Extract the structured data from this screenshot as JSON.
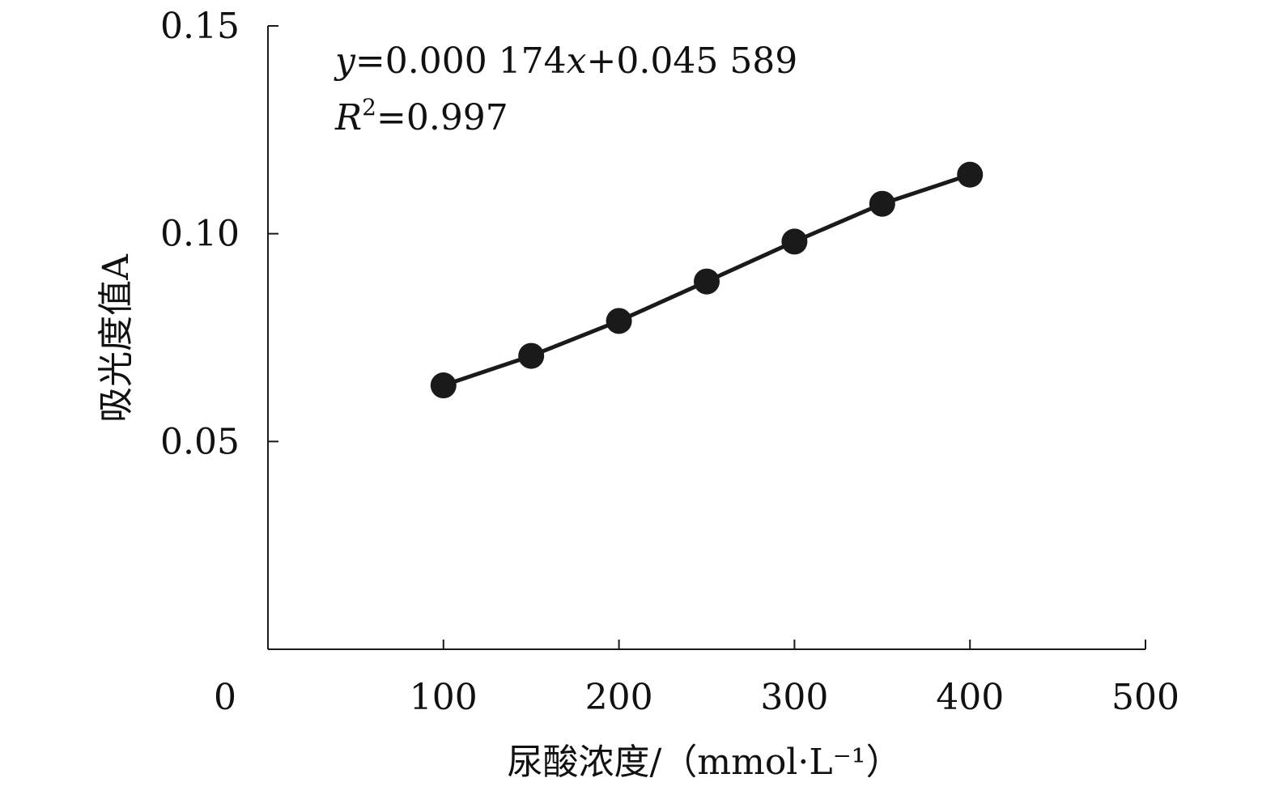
{
  "chart_data": {
    "type": "line",
    "title": "",
    "xlabel": "尿酸浓度/（mmol·L⁻¹）",
    "ylabel": "吸光度值A",
    "xlim": [
      0,
      500
    ],
    "ylim": [
      0,
      0.15
    ],
    "x_ticks": [
      {
        "value": 0,
        "label": "0"
      },
      {
        "value": 100,
        "label": "100"
      },
      {
        "value": 200,
        "label": "200"
      },
      {
        "value": 300,
        "label": "300"
      },
      {
        "value": 400,
        "label": "400"
      },
      {
        "value": 500,
        "label": "500"
      }
    ],
    "y_ticks": [
      {
        "value": 0.05,
        "label": "0.05"
      },
      {
        "value": 0.1,
        "label": "0.10"
      },
      {
        "value": 0.15,
        "label": "0.15"
      }
    ],
    "grid": false,
    "series": [
      {
        "color": "#1a1a1a",
        "marker": "circle",
        "x": [
          100,
          150,
          200,
          250,
          300,
          350,
          400
        ],
        "y": [
          0.0635,
          0.0706,
          0.079,
          0.0885,
          0.0981,
          0.1072,
          0.1142
        ]
      }
    ],
    "annotations": {
      "equation": {
        "y_var": "y",
        "eq_mid": "=0.000 174",
        "x_var": "x",
        "eq_end": "+0.045 589"
      },
      "r_squared": {
        "r_var": "R",
        "exponent": "2",
        "value": "=0.997"
      }
    }
  }
}
